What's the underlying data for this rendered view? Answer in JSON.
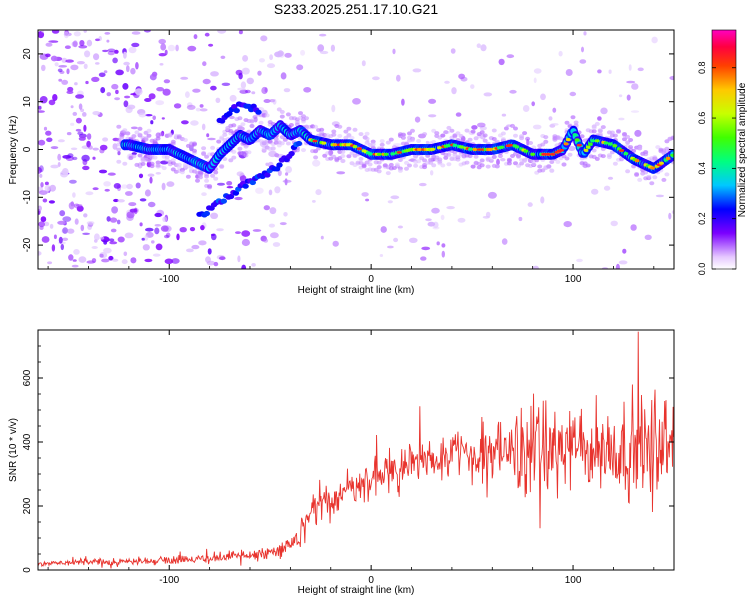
{
  "title": "S233.2025.251.17.10.G21",
  "chart_data": [
    {
      "type": "heatmap",
      "name": "spectrogram",
      "xlabel": "Height of straight line (km)",
      "ylabel": "Frequency (Hz)",
      "xlim": [
        -165,
        150
      ],
      "ylim": [
        -25,
        25
      ],
      "xticks": [
        -100,
        0,
        100
      ],
      "xtick_labels": [
        "-100",
        "0",
        "100"
      ],
      "yticks": [
        -20,
        -10,
        0,
        10,
        20
      ],
      "ytick_labels": [
        "-20",
        "-10",
        "0",
        "10",
        "20"
      ],
      "ridge": {
        "description": "frequency of peak amplitude vs height",
        "x": [
          -120,
          -110,
          -100,
          -90,
          -80,
          -75,
          -70,
          -65,
          -60,
          -55,
          -50,
          -45,
          -40,
          -35,
          -30,
          -20,
          -10,
          0,
          10,
          20,
          30,
          40,
          50,
          60,
          70,
          80,
          90,
          95,
          100,
          105,
          110,
          120,
          130,
          140,
          150
        ],
        "y": [
          1,
          0,
          0,
          -2,
          -4,
          -1,
          1,
          3,
          2,
          4,
          3,
          5,
          3,
          4,
          2,
          1,
          1,
          -1,
          -1,
          0,
          0,
          1,
          0,
          0,
          1,
          -1,
          -1,
          0,
          4,
          -1,
          2,
          1,
          -2,
          -4,
          -1
        ]
      },
      "secondary_branch": {
        "description": "faint descending branch",
        "x": [
          -85,
          -75,
          -65,
          -55,
          -48,
          -40,
          -35
        ],
        "y": [
          -14,
          -11,
          -8,
          -6,
          -4,
          -1,
          2
        ]
      },
      "upper_branch": {
        "description": "short upper branch",
        "x": [
          -75,
          -70,
          -65,
          -60,
          -55
        ],
        "y": [
          6,
          8,
          9,
          9,
          8
        ]
      },
      "colorbar": {
        "label": "Normalized spectral amplitude",
        "range": [
          0.0,
          0.95
        ],
        "ticks": [
          0.0,
          0.2,
          0.4,
          0.6,
          0.8
        ],
        "tick_labels": [
          "0.0",
          "0.2",
          "0.4",
          "0.6",
          "0.8"
        ]
      }
    },
    {
      "type": "line",
      "name": "snr",
      "xlabel": "Height of straight line (km)",
      "ylabel": "SNR (10 * v/v)",
      "xlim": [
        -165,
        150
      ],
      "ylim": [
        0,
        750
      ],
      "xticks": [
        -100,
        0,
        100
      ],
      "xtick_labels": [
        "-100",
        "0",
        "100"
      ],
      "yticks": [
        0,
        200,
        400,
        600
      ],
      "ytick_labels": [
        "0",
        "200",
        "400",
        "600"
      ],
      "series": [
        {
          "name": "SNR",
          "color": "#e8332d",
          "x": [
            -165,
            -150,
            -140,
            -130,
            -120,
            -110,
            -100,
            -90,
            -80,
            -70,
            -60,
            -50,
            -45,
            -40,
            -35,
            -30,
            -25,
            -20,
            -15,
            -10,
            -5,
            0,
            5,
            10,
            15,
            20,
            25,
            30,
            40,
            50,
            60,
            70,
            80,
            90,
            100,
            110,
            120,
            130,
            140,
            150
          ],
          "mean": [
            20,
            22,
            24,
            25,
            27,
            30,
            32,
            34,
            36,
            40,
            45,
            55,
            65,
            80,
            110,
            160,
            200,
            220,
            240,
            260,
            270,
            280,
            300,
            310,
            320,
            330,
            345,
            350,
            355,
            360,
            365,
            370,
            370,
            375,
            380,
            380,
            380,
            380,
            380,
            385
          ],
          "amplitude": [
            10,
            12,
            14,
            14,
            16,
            18,
            20,
            20,
            22,
            24,
            26,
            30,
            35,
            40,
            60,
            80,
            90,
            90,
            80,
            80,
            80,
            80,
            80,
            90,
            90,
            100,
            100,
            100,
            110,
            120,
            140,
            160,
            170,
            180,
            190,
            200,
            210,
            220,
            230,
            240
          ]
        }
      ]
    }
  ]
}
